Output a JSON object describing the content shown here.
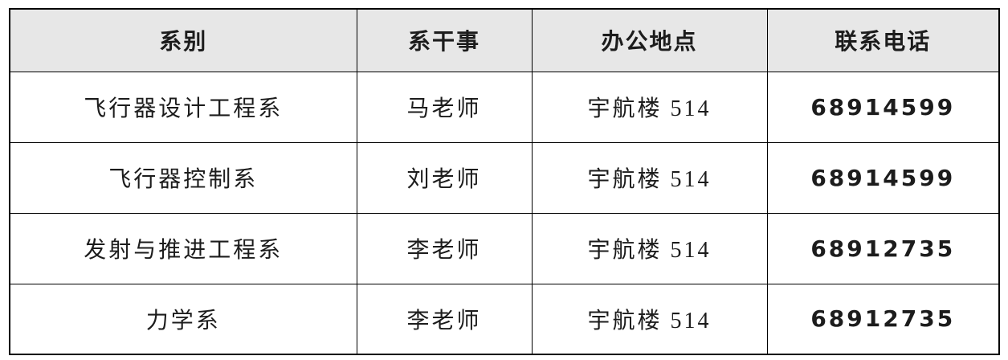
{
  "table": {
    "columns": [
      {
        "label": "系别"
      },
      {
        "label": "系干事"
      },
      {
        "label": "办公地点"
      },
      {
        "label": "联系电话"
      }
    ],
    "rows": [
      {
        "department": "飞行器设计工程系",
        "officer": "马老师",
        "office": "宇航楼 514",
        "phone": "68914599"
      },
      {
        "department": "飞行器控制系",
        "officer": "刘老师",
        "office": "宇航楼 514",
        "phone": "68914599"
      },
      {
        "department": "发射与推进工程系",
        "officer": "李老师",
        "office": "宇航楼 514",
        "phone": "68912735"
      },
      {
        "department": "力学系",
        "officer": "李老师",
        "office": "宇航楼 514",
        "phone": "68912735"
      }
    ],
    "colors": {
      "header_bg": "#e7e7e7",
      "border": "#000000",
      "text": "#1c1c1c"
    }
  }
}
